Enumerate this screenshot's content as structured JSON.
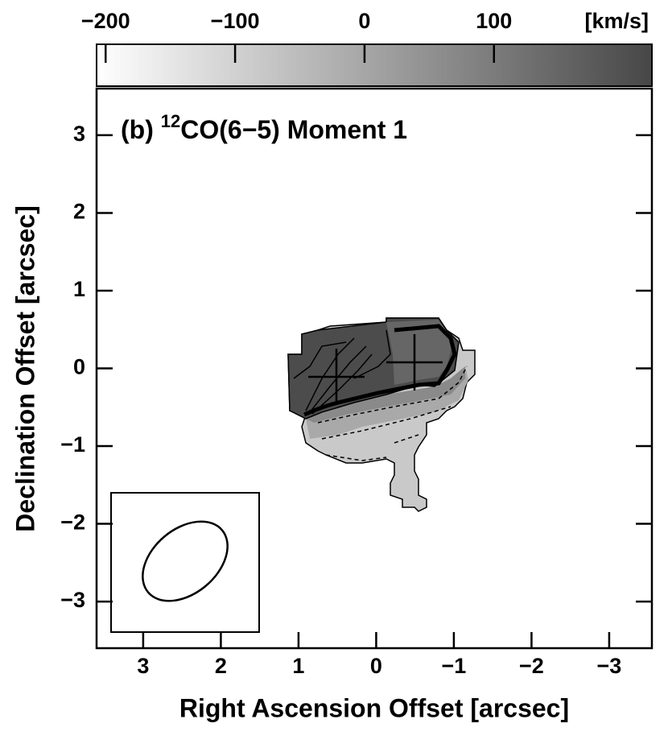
{
  "chart_data": {
    "type": "image",
    "title_prefix": "(b)",
    "title_superscript": "12",
    "title_main": "CO(6−5) Moment 1",
    "x_label": "Right Ascension Offset [arcsec]",
    "y_label": "Declination Offset [arcsec]",
    "xlim": [
      3.6,
      -3.55
    ],
    "ylim": [
      -3.6,
      3.6
    ],
    "xticks": [
      3,
      2,
      1,
      0,
      {
        "value": -1,
        "label": "−1"
      },
      {
        "value": -2,
        "label": "−2"
      },
      {
        "value": -3,
        "label": "−3"
      }
    ],
    "yticks": [
      {
        "value": -3,
        "label": "−3"
      },
      {
        "value": -2,
        "label": "−2"
      },
      {
        "value": -1,
        "label": "−1"
      },
      0,
      1,
      2,
      3
    ],
    "colorbar": {
      "label": "[km/s]",
      "lim": [
        -207,
        222
      ],
      "ticks": [
        {
          "value": -200,
          "label": "−200"
        },
        {
          "value": -100,
          "label": "−100"
        },
        0,
        100
      ],
      "colors": [
        "#ffffff",
        "#474747"
      ]
    }
  }
}
